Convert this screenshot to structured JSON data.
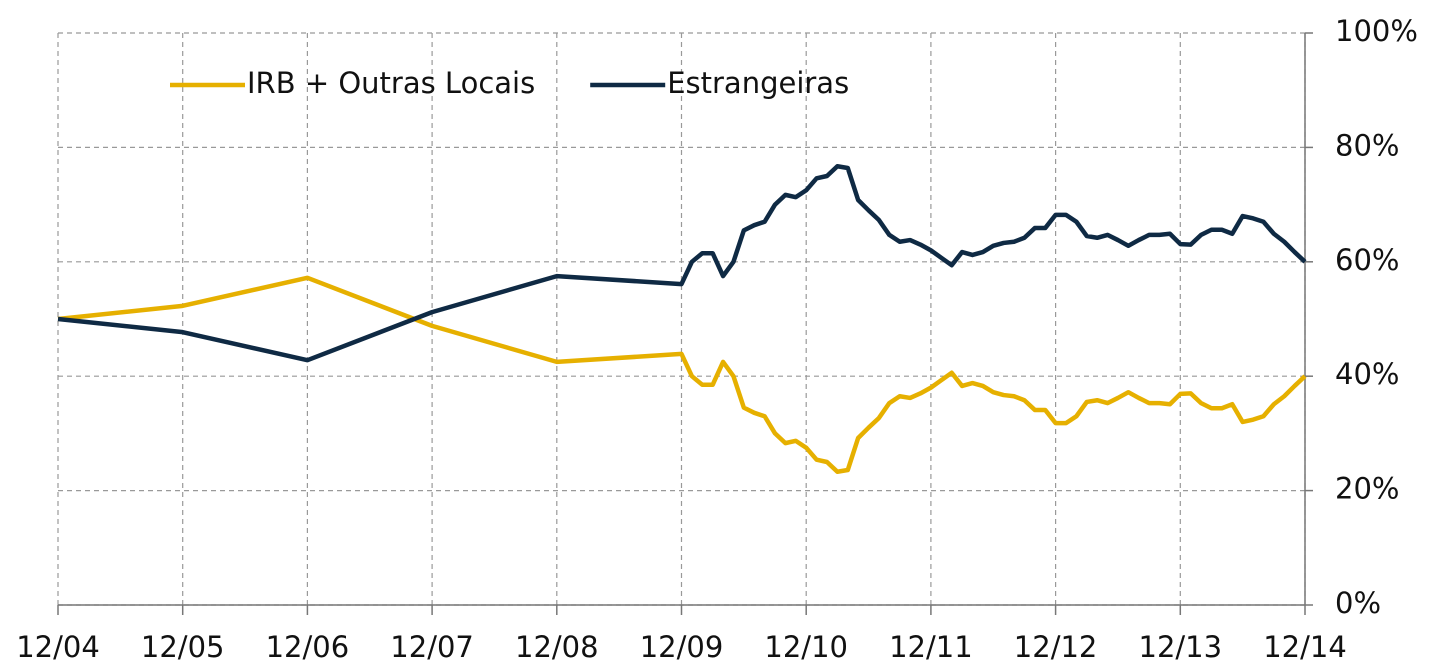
{
  "chart_data": {
    "type": "line",
    "x": [
      0,
      12,
      24,
      36,
      48,
      60,
      61,
      62,
      63,
      64,
      65,
      66,
      67,
      68,
      69,
      70,
      71,
      72,
      73,
      74,
      75,
      76,
      77,
      78,
      79,
      80,
      81,
      82,
      83,
      84,
      85,
      86,
      87,
      88,
      89,
      90,
      91,
      92,
      93,
      94,
      95,
      96,
      97,
      98,
      99,
      100,
      101,
      102,
      103,
      104,
      105,
      106,
      107,
      108,
      109,
      110,
      111,
      112,
      113,
      114,
      115,
      116,
      117,
      118,
      119,
      120
    ],
    "series": [
      {
        "name": "IRB + Outras Locais",
        "color": "#e6b000",
        "values": [
          50,
          52.3,
          57.2,
          48.8,
          42.5,
          43.9,
          40,
          38.5,
          38.5,
          42.5,
          40,
          34.5,
          33.6,
          33,
          30,
          28.3,
          28.7,
          27.5,
          25.4,
          25,
          23.3,
          23.6,
          29.2,
          31,
          32.7,
          35.3,
          36.5,
          36.2,
          37,
          38,
          39.3,
          40.6,
          38.3,
          38.8,
          38.3,
          37.2,
          36.7,
          36.5,
          35.8,
          34.1,
          34.1,
          31.8,
          31.8,
          33,
          35.5,
          35.8,
          35.3,
          36.2,
          37.2,
          36.2,
          35.3,
          35.3,
          35.1,
          36.9,
          37,
          35.3,
          34.4,
          34.4,
          35.1,
          32,
          32.4,
          33,
          35.1,
          36.5,
          38.3,
          40
        ]
      },
      {
        "name": "Estrangeiras",
        "color": "#0f2a44",
        "values": [
          50,
          47.7,
          42.8,
          51.2,
          57.5,
          56.1,
          60,
          61.5,
          61.5,
          57.5,
          60,
          65.5,
          66.4,
          67,
          70,
          71.7,
          71.3,
          72.5,
          74.6,
          75,
          76.7,
          76.4,
          70.8,
          69,
          67.3,
          64.7,
          63.5,
          63.8,
          63,
          62,
          60.7,
          59.4,
          61.7,
          61.2,
          61.7,
          62.8,
          63.3,
          63.5,
          64.2,
          65.9,
          65.9,
          68.2,
          68.2,
          67,
          64.5,
          64.2,
          64.7,
          63.8,
          62.8,
          63.8,
          64.7,
          64.7,
          64.9,
          63.1,
          63,
          64.7,
          65.6,
          65.6,
          64.9,
          68,
          67.6,
          67,
          64.9,
          63.5,
          61.7,
          60
        ]
      }
    ],
    "xlim": [
      0,
      120
    ],
    "xticks": [
      {
        "value": 0,
        "label": "12/04"
      },
      {
        "value": 12,
        "label": "12/05"
      },
      {
        "value": 24,
        "label": "12/06"
      },
      {
        "value": 36,
        "label": "12/07"
      },
      {
        "value": 48,
        "label": "12/08"
      },
      {
        "value": 60,
        "label": "12/09"
      },
      {
        "value": 72,
        "label": "12/10"
      },
      {
        "value": 84,
        "label": "12/11"
      },
      {
        "value": 96,
        "label": "12/12"
      },
      {
        "value": 108,
        "label": "12/13"
      },
      {
        "value": 120,
        "label": "12/14"
      }
    ],
    "ylim": [
      0,
      100
    ],
    "yticks": [
      {
        "value": 0,
        "label": "0%"
      },
      {
        "value": 20,
        "label": "20%"
      },
      {
        "value": 40,
        "label": "40%"
      },
      {
        "value": 60,
        "label": "60%"
      },
      {
        "value": 80,
        "label": "80%"
      },
      {
        "value": 100,
        "label": "100%"
      }
    ],
    "grid": true,
    "legend": "top-left"
  }
}
